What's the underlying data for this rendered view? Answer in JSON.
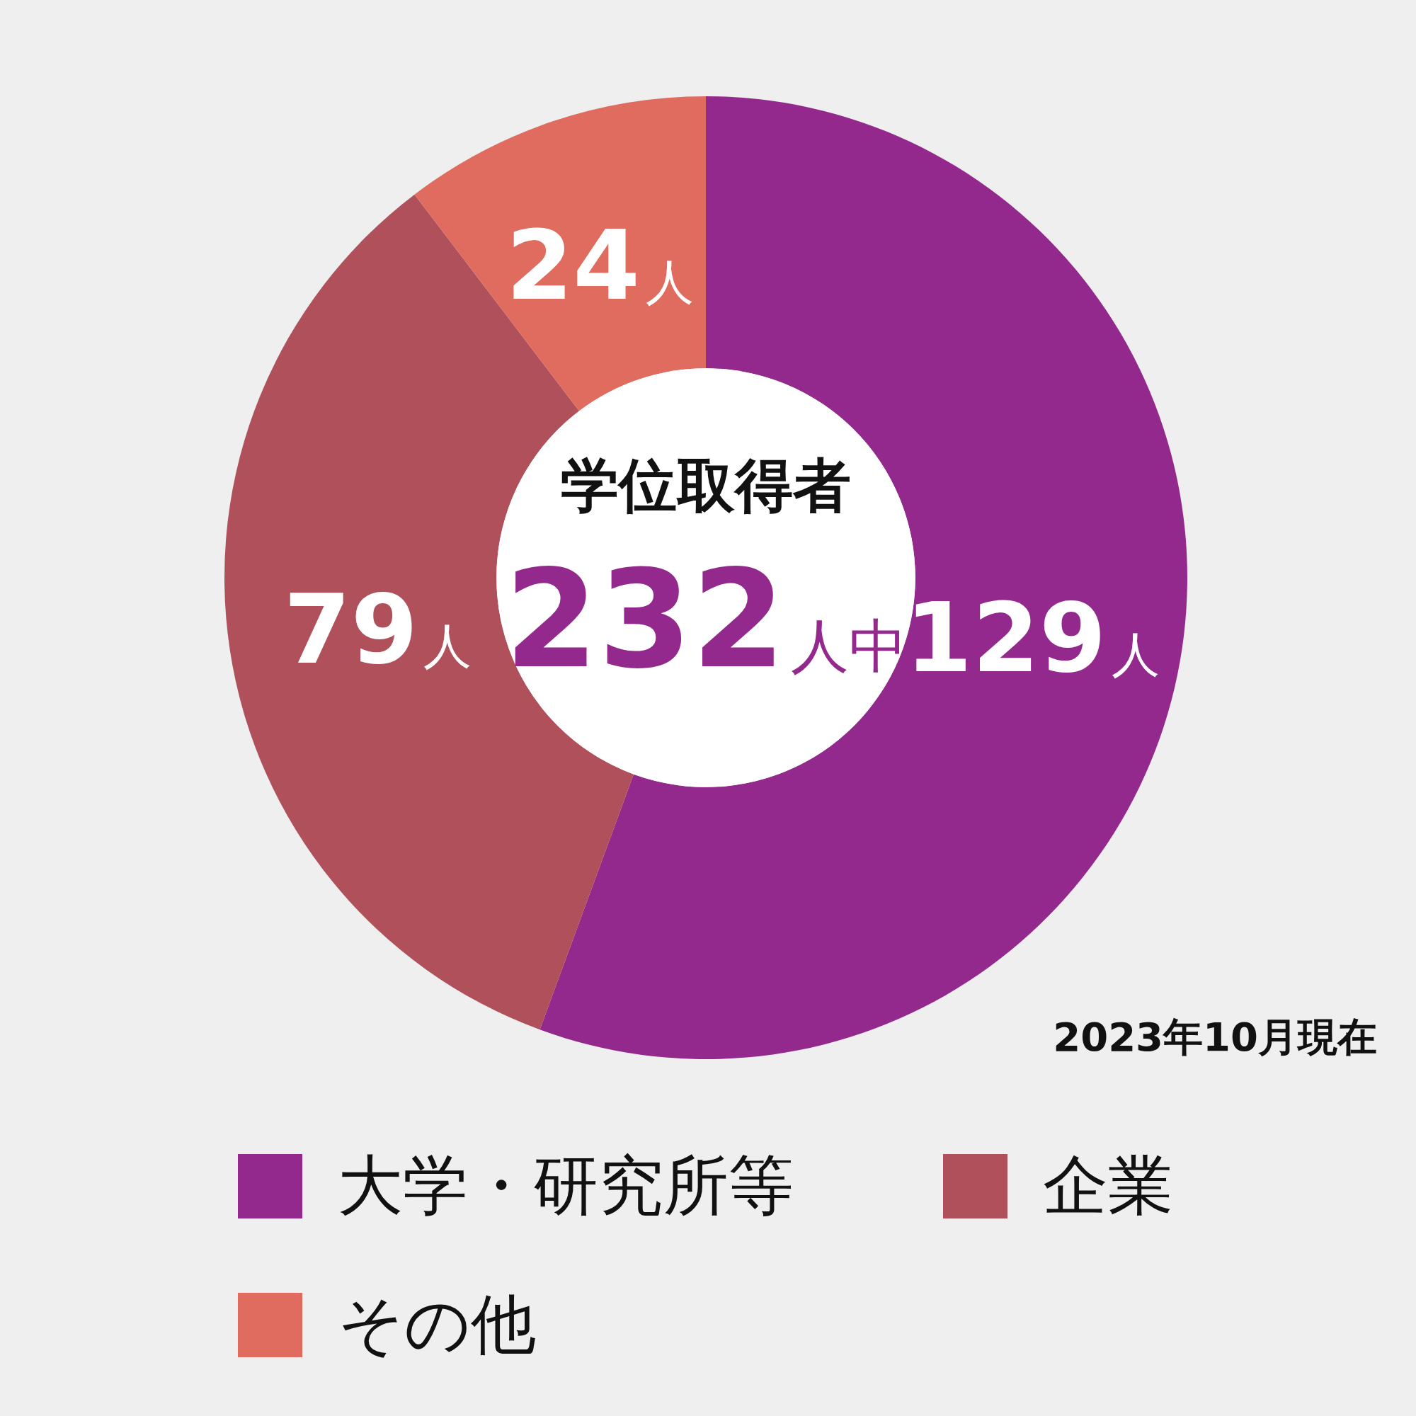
{
  "chart_data": {
    "type": "donut",
    "title": "学位取得者",
    "categories": [
      "大学・研究所等",
      "企業",
      "その他"
    ],
    "values": [
      129,
      79,
      24
    ],
    "colors": [
      "#93298c",
      "#b0505a",
      "#e06c60"
    ],
    "value_labels": [
      "129人",
      "79人",
      "24人"
    ],
    "annotations": [
      "232人中",
      "2023年10月現在"
    ],
    "legend": "bottom"
  }
}
